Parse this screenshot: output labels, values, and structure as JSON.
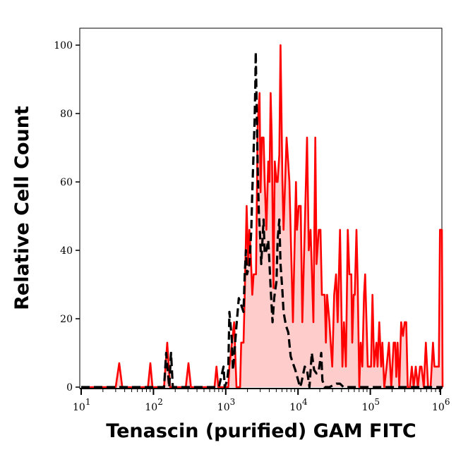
{
  "chart_data": {
    "type": "area",
    "title": "",
    "xlabel": "Tenascin (purified) GAM FITC",
    "ylabel": "Relative Cell Count",
    "x_scale": "log",
    "xlim": [
      10,
      1000000
    ],
    "ylim": [
      0,
      100
    ],
    "grid": false,
    "y_ticks": [
      0,
      20,
      40,
      60,
      80,
      100
    ],
    "x_ticks": [
      {
        "value": 10,
        "base": "10",
        "exponent": "1"
      },
      {
        "value": 100,
        "base": "10",
        "exponent": "2"
      },
      {
        "value": 1000,
        "base": "10",
        "exponent": "3"
      },
      {
        "value": 10000,
        "base": "10",
        "exponent": "4"
      },
      {
        "value": 100000,
        "base": "10",
        "exponent": "5"
      },
      {
        "value": 1000000,
        "base": "10",
        "exponent": "6"
      }
    ],
    "series": [
      {
        "color": "#ff0000",
        "fill": "#ffcccc",
        "line_style": "solid",
        "x": [
          10,
          30,
          33.6,
          37,
          84,
          90.6,
          97,
          140,
          155,
          170,
          280,
          305,
          330,
          650,
          700,
          745,
          790,
          1084,
          1125,
          1306,
          1409,
          1578,
          1637,
          1763,
          1831,
          1945,
          2051,
          2128,
          2208,
          2328,
          2432,
          2624,
          2767,
          2938,
          3027,
          3162,
          3334,
          3460,
          3648,
          3873,
          4027,
          4178,
          4335,
          4571,
          4775,
          5035,
          5224,
          5508,
          5728,
          6081,
          6310,
          6950,
          7603,
          8511,
          9376,
          9661,
          10260,
          10890,
          11480,
          12390,
          13340,
          14060,
          14930,
          16330,
          17340,
          18030,
          19410,
          20460,
          21380,
          23390,
          24320,
          25230,
          27230,
          28250,
          29790,
          31620,
          33570,
          35400,
          38110,
          41110,
          43250,
          45920,
          48850,
          51400,
          54580,
          56230,
          58880,
          61000,
          64420,
          66900,
          70470,
          73620,
          77620,
          81850,
          84920,
          92260,
          102300,
          107200,
          113000,
          121700,
          126000,
          133000,
          141300,
          146900,
          156000,
          168000,
          181100,
          195000,
          210400,
          221000,
          229000,
          238800,
          251800,
          267300,
          283000,
          299200,
          314000,
          329600,
          353000,
          375000,
          398000,
          425600,
          455000,
          487500,
          510000,
          550000,
          587500,
          630000,
          682300,
          736200,
          770000,
          887200,
          920000,
          977000,
          1000000
        ],
        "y": [
          0,
          0,
          7,
          0,
          0,
          7,
          0,
          0,
          13,
          0,
          0,
          7,
          0,
          0,
          0,
          6,
          0,
          0,
          6,
          19,
          0,
          0,
          13,
          13,
          27,
          53,
          36,
          46,
          40,
          27,
          33,
          33,
          77,
          86,
          57,
          73,
          73,
          60,
          46,
          66,
          60,
          86,
          73,
          29,
          66,
          60,
          60,
          68,
          100,
          60,
          46,
          73,
          60,
          19,
          60,
          46,
          53,
          53,
          19,
          46,
          73,
          40,
          46,
          19,
          73,
          36,
          46,
          46,
          27,
          27,
          13,
          27,
          19,
          13,
          6,
          27,
          33,
          19,
          46,
          6,
          19,
          6,
          46,
          33,
          33,
          13,
          27,
          27,
          46,
          31,
          0,
          13,
          6,
          27,
          33,
          6,
          6,
          27,
          6,
          13,
          6,
          19,
          6,
          13,
          0,
          6,
          13,
          0,
          13,
          13,
          3,
          13,
          0,
          19,
          15,
          19,
          19,
          0,
          0,
          6,
          0,
          6,
          0,
          6,
          6,
          0,
          13,
          0,
          0,
          13,
          6,
          6,
          46,
          46,
          0
        ]
      },
      {
        "color": "#000000",
        "line_style": "dashed",
        "x": [
          10,
          140,
          150,
          165,
          175,
          185,
          804,
          865,
          933,
          968,
          1045,
          1084,
          1125,
          1167,
          1213,
          1259,
          1306,
          1409,
          1517,
          1637,
          1763,
          1831,
          1901,
          1972,
          2128,
          2259,
          2328,
          2432,
          2506,
          2564,
          2600,
          2767,
          2871,
          2979,
          3097,
          3334,
          3460,
          3648,
          3873,
          4027,
          4178,
          4436,
          4677,
          5035,
          5224,
          5508,
          5728,
          6081,
          6310,
          6808,
          7328,
          7907,
          8511,
          9183,
          10640,
          11070,
          12390,
          13340,
          14390,
          15490,
          16710,
          18030,
          19410,
          20940,
          21730,
          23390,
          27230,
          34040,
          38110,
          42660,
          1000000
        ],
        "y": [
          0,
          0,
          10,
          0,
          10,
          0,
          0,
          3,
          6,
          0,
          2,
          5,
          22,
          18,
          14,
          5,
          9,
          18,
          26,
          24,
          22,
          33,
          40,
          33,
          36,
          46,
          57,
          69,
          78,
          88,
          98,
          64,
          51,
          45,
          36,
          49,
          39,
          40,
          43,
          36,
          29,
          19,
          26,
          31,
          43,
          49,
          36,
          28,
          22,
          18,
          16,
          9,
          7,
          5,
          0,
          1,
          6,
          5,
          0,
          10,
          5,
          4,
          5,
          10,
          2,
          0,
          0,
          1,
          1,
          0,
          0
        ]
      }
    ]
  }
}
